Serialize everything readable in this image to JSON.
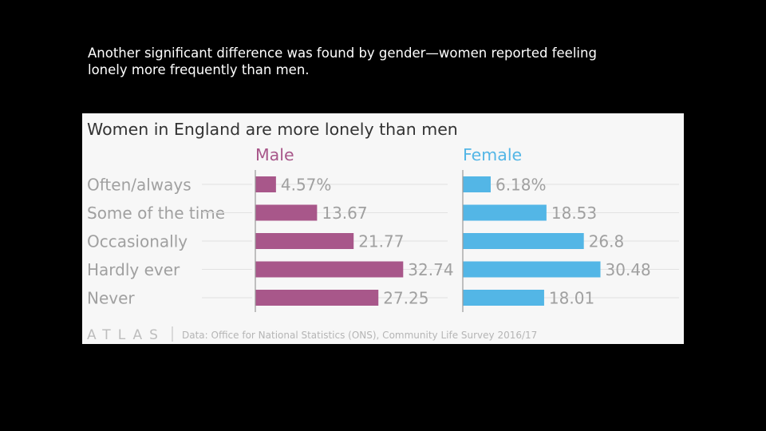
{
  "slide": {
    "caption_lines": [
      "Another significant difference was found by gender—women reported feeling",
      "lonely more frequently than men."
    ]
  },
  "colors": {
    "background": "#000000",
    "panel": "#f7f7f7",
    "male": "#a8578a",
    "female": "#53b6e6",
    "label_text": "#a0a0a0",
    "title_text": "#333333"
  },
  "chart_data": {
    "type": "bar",
    "orientation": "horizontal",
    "title": "Women in England are more lonely than men",
    "categories": [
      "Often/always",
      "Some of the time",
      "Occasionally",
      "Hardly ever",
      "Never"
    ],
    "series": [
      {
        "name": "Male",
        "values": [
          4.57,
          13.67,
          21.77,
          32.74,
          27.25
        ],
        "labels": [
          "4.57%",
          "13.67",
          "21.77",
          "32.74",
          "27.25"
        ]
      },
      {
        "name": "Female",
        "values": [
          6.18,
          18.53,
          26.8,
          30.48,
          18.01
        ],
        "labels": [
          "6.18%",
          "18.53",
          "26.8",
          "30.48",
          "18.01"
        ]
      }
    ],
    "xlim": [
      0,
      40
    ],
    "source_brand": "ATLAS",
    "source": "Data: Office for National Statistics (ONS), Community Life Survey 2016/17"
  }
}
